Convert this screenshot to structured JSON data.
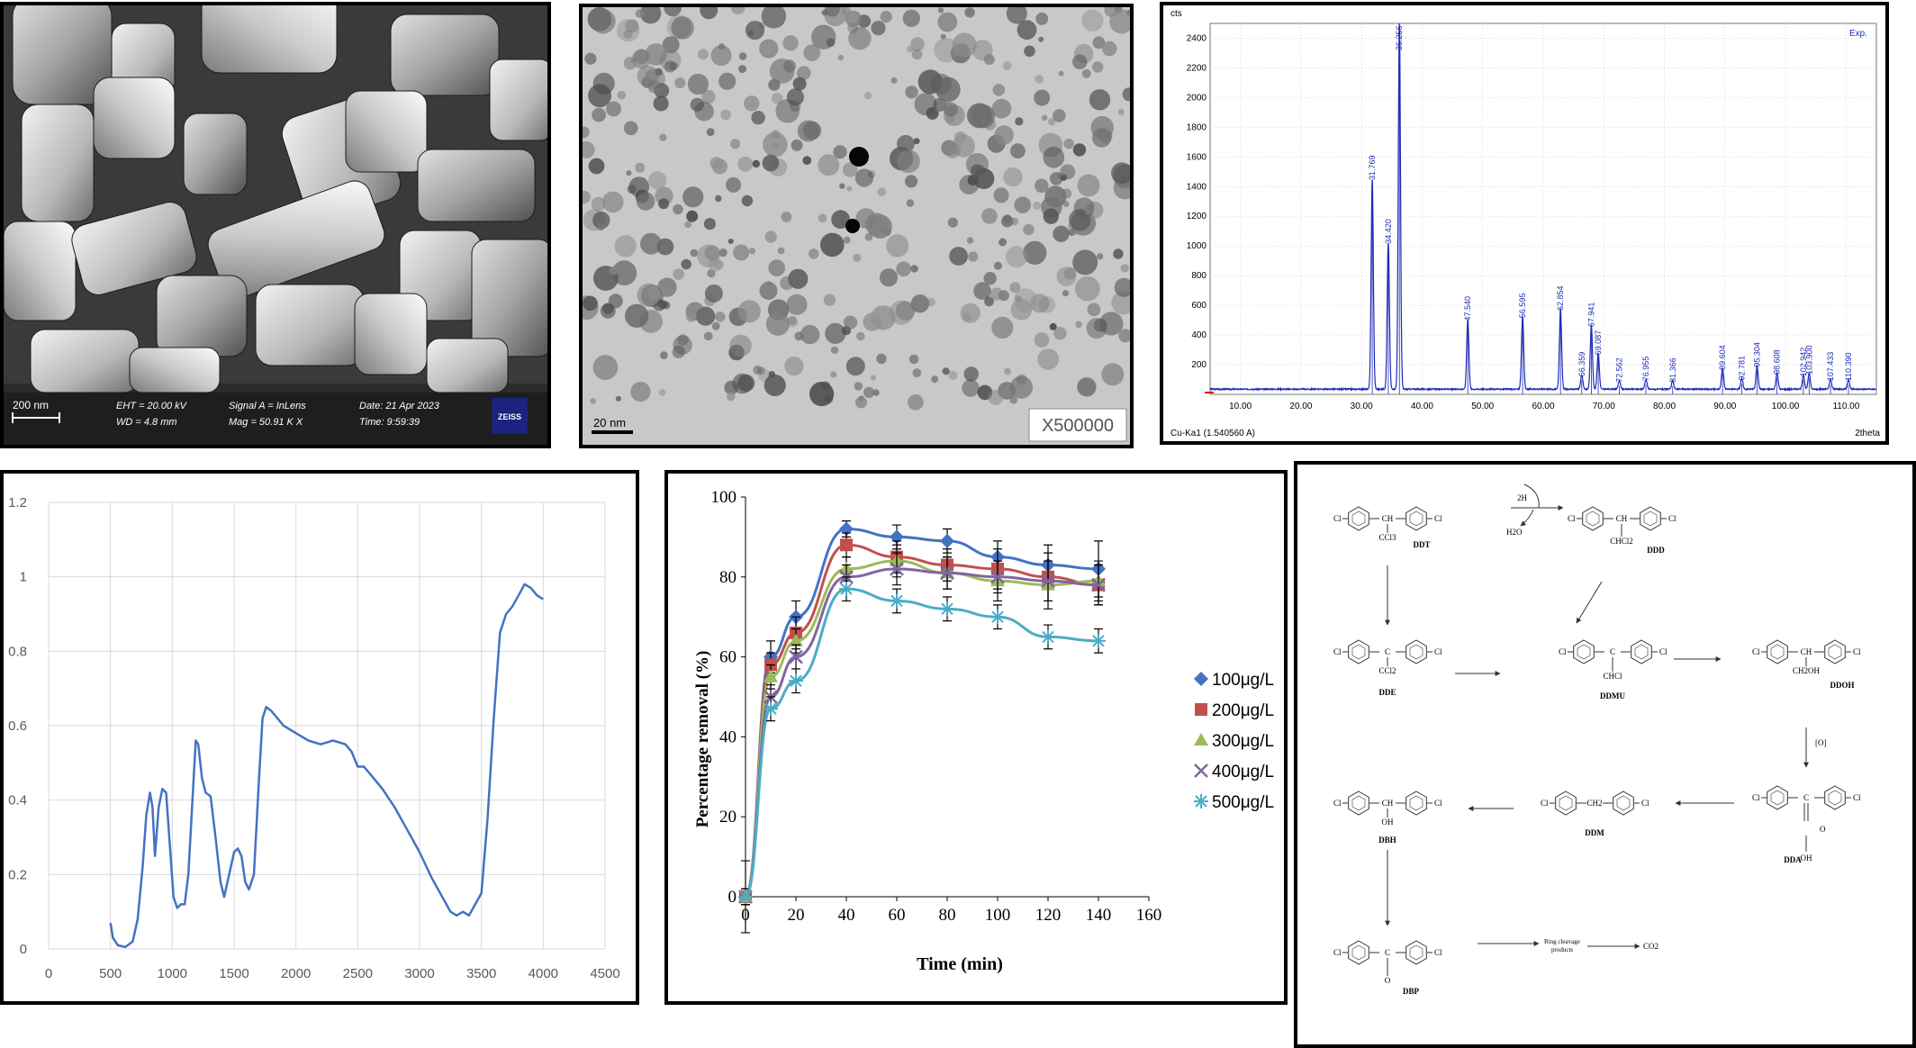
{
  "sem": {
    "scale_bar": "200 nm",
    "eht": "EHT = 20.00 kV",
    "wd": "WD =  4.8 mm",
    "signal": "Signal A = InLens",
    "mag": "Mag =   50.91 K X",
    "date": "Date: 21 Apr 2023",
    "time": "Time: 9:59:39",
    "logo": "ZEISS"
  },
  "tem": {
    "scale_bar": "20 nm",
    "magnification": "X500000"
  },
  "xrd": {
    "y_unit": "cts",
    "legend": "Exp.",
    "x_label": "2theta",
    "source": "Cu-Ka1 (1.540560 A)",
    "color": "#1f2bb8"
  },
  "chart_data": [
    {
      "type": "line",
      "id": "xrd",
      "x_ticks": [
        "10.00",
        "20.00",
        "30.00",
        "40.00",
        "50.00",
        "60.00",
        "70.00",
        "80.00",
        "90.00",
        "100.00",
        "110.00"
      ],
      "y_ticks": [
        "200",
        "400",
        "600",
        "800",
        "1000",
        "1200",
        "1400",
        "1600",
        "1800",
        "2000",
        "2200",
        "2400"
      ],
      "xlim": [
        5,
        115
      ],
      "ylim": [
        0,
        2500
      ],
      "baseline": 35,
      "peaks": [
        {
          "x": 31.77,
          "y": 1420,
          "label": "31.769"
        },
        {
          "x": 34.42,
          "y": 990,
          "label": "34.420"
        },
        {
          "x": 36.25,
          "y": 2500,
          "label": "36.256"
        },
        {
          "x": 47.54,
          "y": 470,
          "label": "47.540"
        },
        {
          "x": 56.59,
          "y": 490,
          "label": "56.595"
        },
        {
          "x": 62.85,
          "y": 540,
          "label": "62.854"
        },
        {
          "x": 66.36,
          "y": 95,
          "label": "66.359"
        },
        {
          "x": 67.94,
          "y": 430,
          "label": "67.941"
        },
        {
          "x": 69.08,
          "y": 240,
          "label": "69.087"
        },
        {
          "x": 72.56,
          "y": 55,
          "label": "72.562"
        },
        {
          "x": 76.95,
          "y": 65,
          "label": "76.955"
        },
        {
          "x": 81.37,
          "y": 55,
          "label": "81.366"
        },
        {
          "x": 89.6,
          "y": 140,
          "label": "89.604"
        },
        {
          "x": 92.78,
          "y": 70,
          "label": "92.781"
        },
        {
          "x": 95.3,
          "y": 160,
          "label": "95.304"
        },
        {
          "x": 98.6,
          "y": 110,
          "label": "98.608"
        },
        {
          "x": 102.94,
          "y": 95,
          "label": "102.942"
        },
        {
          "x": 103.9,
          "y": 110,
          "label": "103.900"
        },
        {
          "x": 107.43,
          "y": 65,
          "label": "107.433"
        },
        {
          "x": 110.39,
          "y": 65,
          "label": "110.390"
        }
      ]
    },
    {
      "type": "line",
      "id": "ftir",
      "x_ticks": [
        "0",
        "500",
        "1000",
        "1500",
        "2000",
        "2500",
        "3000",
        "3500",
        "4000",
        "4500"
      ],
      "y_ticks": [
        "0",
        "0.2",
        "0.4",
        "0.6",
        "0.8",
        "1",
        "1.2"
      ],
      "xlim": [
        0,
        4500
      ],
      "ylim": [
        0,
        1.2
      ],
      "color": "#4472c4",
      "points": [
        [
          500,
          0.07
        ],
        [
          520,
          0.03
        ],
        [
          560,
          0.01
        ],
        [
          620,
          0.005
        ],
        [
          680,
          0.02
        ],
        [
          720,
          0.08
        ],
        [
          760,
          0.22
        ],
        [
          790,
          0.36
        ],
        [
          820,
          0.42
        ],
        [
          840,
          0.38
        ],
        [
          860,
          0.25
        ],
        [
          890,
          0.38
        ],
        [
          920,
          0.43
        ],
        [
          950,
          0.42
        ],
        [
          980,
          0.28
        ],
        [
          1010,
          0.14
        ],
        [
          1040,
          0.11
        ],
        [
          1070,
          0.12
        ],
        [
          1100,
          0.12
        ],
        [
          1130,
          0.2
        ],
        [
          1160,
          0.38
        ],
        [
          1190,
          0.56
        ],
        [
          1210,
          0.55
        ],
        [
          1240,
          0.46
        ],
        [
          1270,
          0.42
        ],
        [
          1310,
          0.41
        ],
        [
          1350,
          0.3
        ],
        [
          1390,
          0.18
        ],
        [
          1420,
          0.14
        ],
        [
          1460,
          0.2
        ],
        [
          1500,
          0.26
        ],
        [
          1530,
          0.27
        ],
        [
          1560,
          0.25
        ],
        [
          1590,
          0.18
        ],
        [
          1620,
          0.16
        ],
        [
          1660,
          0.2
        ],
        [
          1700,
          0.45
        ],
        [
          1730,
          0.62
        ],
        [
          1760,
          0.65
        ],
        [
          1800,
          0.64
        ],
        [
          1850,
          0.62
        ],
        [
          1900,
          0.6
        ],
        [
          2000,
          0.58
        ],
        [
          2100,
          0.56
        ],
        [
          2200,
          0.55
        ],
        [
          2300,
          0.56
        ],
        [
          2400,
          0.55
        ],
        [
          2450,
          0.53
        ],
        [
          2500,
          0.49
        ],
        [
          2550,
          0.49
        ],
        [
          2600,
          0.47
        ],
        [
          2700,
          0.43
        ],
        [
          2800,
          0.38
        ],
        [
          2900,
          0.32
        ],
        [
          3000,
          0.26
        ],
        [
          3100,
          0.19
        ],
        [
          3200,
          0.13
        ],
        [
          3250,
          0.1
        ],
        [
          3300,
          0.09
        ],
        [
          3350,
          0.1
        ],
        [
          3400,
          0.09
        ],
        [
          3450,
          0.12
        ],
        [
          3500,
          0.15
        ],
        [
          3550,
          0.35
        ],
        [
          3600,
          0.62
        ],
        [
          3650,
          0.85
        ],
        [
          3700,
          0.9
        ],
        [
          3750,
          0.92
        ],
        [
          3800,
          0.95
        ],
        [
          3850,
          0.98
        ],
        [
          3900,
          0.97
        ],
        [
          3950,
          0.95
        ],
        [
          4000,
          0.94
        ]
      ]
    },
    {
      "type": "line",
      "id": "removal",
      "xlabel": "Time (min)",
      "ylabel": "Percentage removal (%)",
      "xlim": [
        0,
        160
      ],
      "ylim": [
        0,
        100
      ],
      "x_ticks": [
        "0",
        "20",
        "40",
        "60",
        "80",
        "100",
        "120",
        "140",
        "160"
      ],
      "y_ticks": [
        "0",
        "20",
        "40",
        "60",
        "80",
        "100"
      ],
      "x": [
        0,
        10,
        20,
        40,
        60,
        80,
        100,
        120,
        140
      ],
      "series": [
        {
          "name": "100μg/L",
          "color": "#4472c4",
          "marker": "diamond",
          "values": [
            0,
            60,
            70,
            92,
            90,
            89,
            85,
            83,
            82
          ],
          "errors": [
            2,
            4,
            4,
            2,
            3,
            3,
            4,
            5,
            7
          ]
        },
        {
          "name": "200μg/L",
          "color": "#c0504d",
          "marker": "square",
          "values": [
            0,
            58,
            66,
            88,
            85,
            83,
            82,
            80,
            78
          ],
          "errors": [
            2,
            3,
            4,
            3,
            4,
            4,
            5,
            6,
            5
          ]
        },
        {
          "name": "300μg/L",
          "color": "#9bbb59",
          "marker": "triangle",
          "values": [
            0,
            55,
            64,
            82,
            84,
            81,
            79,
            78,
            79
          ],
          "errors": [
            2,
            3,
            3,
            3,
            4,
            4,
            5,
            6,
            5
          ]
        },
        {
          "name": "400μg/L",
          "color": "#8064a2",
          "marker": "x",
          "values": [
            0,
            50,
            60,
            80,
            82,
            81,
            80,
            79,
            78
          ],
          "errors": [
            2,
            3,
            3,
            3,
            4,
            4,
            4,
            5,
            5
          ]
        },
        {
          "name": "500μg/L",
          "color": "#4bacc6",
          "marker": "star",
          "values": [
            0,
            47,
            54,
            77,
            74,
            72,
            70,
            65,
            64
          ],
          "errors": [
            9,
            3,
            3,
            3,
            3,
            3,
            3,
            3,
            3
          ]
        }
      ]
    }
  ],
  "pathway": {
    "ddt": "DDT",
    "ddd": "DDD",
    "dde": "DDE",
    "ddmu": "DDMU",
    "ddoh": "DDOH",
    "dda": "DDA",
    "ddm": "DDM",
    "ddh": "DBH",
    "dbp": "DBP",
    "sub_ccl3": "CCl3",
    "sub_chcl2": "CHCl2",
    "sub_ccl2": "CCl2",
    "sub_chcl": "CHCl",
    "sub_ch2oh": "CH2OH",
    "sub_oh": "OH",
    "sub_o": "O",
    "ch": "CH",
    "c": "C",
    "ch2": "CH2",
    "cl": "Cl",
    "reagent_2h": "2H",
    "h2o": "H2O",
    "oxidation": "[O]",
    "ring_cleavage_1": "Ring cleavage",
    "ring_cleavage_2": "products",
    "co2": "CO2"
  }
}
